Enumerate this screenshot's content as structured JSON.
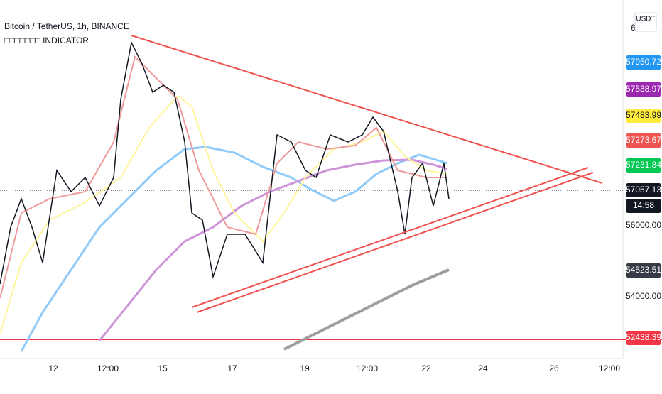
{
  "header": {
    "title": "Bitcoin / TetherUS, 1h, BINANCE",
    "indicator": "□□□□□□□ INDICATOR"
  },
  "price_axis": {
    "currency": "USDT",
    "top_label": "6",
    "labels": [
      {
        "text": "57950.72",
        "color": "#2196f3",
        "text_color": "#ffffff"
      },
      {
        "text": "57538.97",
        "color": "#9c27b0",
        "text_color": "#ffffff"
      },
      {
        "text": "57483.99",
        "color": "#ffeb3b",
        "text_color": "#131722"
      },
      {
        "text": "57273.67",
        "color": "#ef5350",
        "text_color": "#ffffff"
      },
      {
        "text": "57231.84",
        "color": "#00c853",
        "text_color": "#ffffff"
      },
      {
        "text": "57057.13",
        "color": "#131722",
        "text_color": "#ffffff"
      },
      {
        "text": "14:58",
        "color": "#131722",
        "text_color": "#ffffff"
      },
      {
        "text": "56000.00",
        "color": "none",
        "text_color": "#131722"
      },
      {
        "text": "54523.51",
        "color": "#363a45",
        "text_color": "#ffffff"
      },
      {
        "text": "54000.00",
        "color": "none",
        "text_color": "#131722"
      },
      {
        "text": "52438.39",
        "color": "#f23645",
        "text_color": "#ffffff"
      }
    ]
  },
  "time_axis": {
    "labels": [
      "12",
      "12:00",
      "15",
      "17",
      "19",
      "12:00",
      "22",
      "24",
      "26",
      "12:00"
    ]
  }
}
